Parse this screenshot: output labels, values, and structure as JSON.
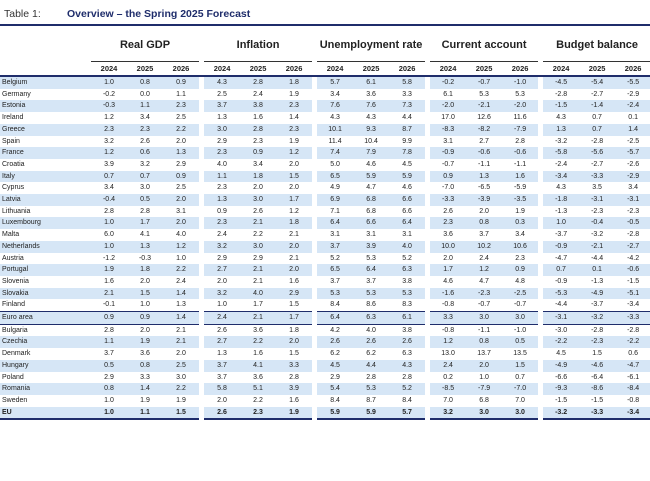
{
  "table_label": "Table 1:",
  "title": "Overview – the Spring 2025 Forecast",
  "groups": [
    "Real GDP",
    "Inflation",
    "Unemployment rate",
    "Current account",
    "Budget balance"
  ],
  "years": [
    "2024",
    "2025",
    "2026"
  ],
  "rows": [
    {
      "country": "Belgium",
      "v": [
        "1.0",
        "0.8",
        "0.9",
        "4.3",
        "2.8",
        "1.8",
        "5.7",
        "6.1",
        "5.8",
        "-0.2",
        "-0.7",
        "-1.0",
        "-4.5",
        "-5.4",
        "-5.5"
      ]
    },
    {
      "country": "Germany",
      "v": [
        "-0.2",
        "0.0",
        "1.1",
        "2.5",
        "2.4",
        "1.9",
        "3.4",
        "3.6",
        "3.3",
        "6.1",
        "5.3",
        "5.3",
        "-2.8",
        "-2.7",
        "-2.9"
      ]
    },
    {
      "country": "Estonia",
      "v": [
        "-0.3",
        "1.1",
        "2.3",
        "3.7",
        "3.8",
        "2.3",
        "7.6",
        "7.6",
        "7.3",
        "-2.0",
        "-2.1",
        "-2.0",
        "-1.5",
        "-1.4",
        "-2.4"
      ]
    },
    {
      "country": "Ireland",
      "v": [
        "1.2",
        "3.4",
        "2.5",
        "1.3",
        "1.6",
        "1.4",
        "4.3",
        "4.3",
        "4.4",
        "17.0",
        "12.6",
        "11.6",
        "4.3",
        "0.7",
        "0.1"
      ]
    },
    {
      "country": "Greece",
      "v": [
        "2.3",
        "2.3",
        "2.2",
        "3.0",
        "2.8",
        "2.3",
        "10.1",
        "9.3",
        "8.7",
        "-8.3",
        "-8.2",
        "-7.9",
        "1.3",
        "0.7",
        "1.4"
      ]
    },
    {
      "country": "Spain",
      "v": [
        "3.2",
        "2.6",
        "2.0",
        "2.9",
        "2.3",
        "1.9",
        "11.4",
        "10.4",
        "9.9",
        "3.1",
        "2.7",
        "2.8",
        "-3.2",
        "-2.8",
        "-2.5"
      ]
    },
    {
      "country": "France",
      "v": [
        "1.2",
        "0.6",
        "1.3",
        "2.3",
        "0.9",
        "1.2",
        "7.4",
        "7.9",
        "7.8",
        "-0.9",
        "-0.6",
        "-0.6",
        "-5.8",
        "-5.6",
        "-5.7"
      ]
    },
    {
      "country": "Croatia",
      "v": [
        "3.9",
        "3.2",
        "2.9",
        "4.0",
        "3.4",
        "2.0",
        "5.0",
        "4.6",
        "4.5",
        "-0.7",
        "-1.1",
        "-1.1",
        "-2.4",
        "-2.7",
        "-2.6"
      ]
    },
    {
      "country": "Italy",
      "v": [
        "0.7",
        "0.7",
        "0.9",
        "1.1",
        "1.8",
        "1.5",
        "6.5",
        "5.9",
        "5.9",
        "0.9",
        "1.3",
        "1.6",
        "-3.4",
        "-3.3",
        "-2.9"
      ]
    },
    {
      "country": "Cyprus",
      "v": [
        "3.4",
        "3.0",
        "2.5",
        "2.3",
        "2.0",
        "2.0",
        "4.9",
        "4.7",
        "4.6",
        "-7.0",
        "-6.5",
        "-5.9",
        "4.3",
        "3.5",
        "3.4"
      ]
    },
    {
      "country": "Latvia",
      "v": [
        "-0.4",
        "0.5",
        "2.0",
        "1.3",
        "3.0",
        "1.7",
        "6.9",
        "6.8",
        "6.6",
        "-3.3",
        "-3.9",
        "-3.5",
        "-1.8",
        "-3.1",
        "-3.1"
      ]
    },
    {
      "country": "Lithuania",
      "v": [
        "2.8",
        "2.8",
        "3.1",
        "0.9",
        "2.6",
        "1.2",
        "7.1",
        "6.8",
        "6.6",
        "2.6",
        "2.0",
        "1.9",
        "-1.3",
        "-2.3",
        "-2.3"
      ]
    },
    {
      "country": "Luxembourg",
      "v": [
        "1.0",
        "1.7",
        "2.0",
        "2.3",
        "2.1",
        "1.8",
        "6.4",
        "6.6",
        "6.4",
        "2.3",
        "0.8",
        "0.3",
        "1.0",
        "-0.4",
        "-0.5"
      ]
    },
    {
      "country": "Malta",
      "v": [
        "6.0",
        "4.1",
        "4.0",
        "2.4",
        "2.2",
        "2.1",
        "3.1",
        "3.1",
        "3.1",
        "3.6",
        "3.7",
        "3.4",
        "-3.7",
        "-3.2",
        "-2.8"
      ]
    },
    {
      "country": "Netherlands",
      "v": [
        "1.0",
        "1.3",
        "1.2",
        "3.2",
        "3.0",
        "2.0",
        "3.7",
        "3.9",
        "4.0",
        "10.0",
        "10.2",
        "10.6",
        "-0.9",
        "-2.1",
        "-2.7"
      ]
    },
    {
      "country": "Austria",
      "v": [
        "-1.2",
        "-0.3",
        "1.0",
        "2.9",
        "2.9",
        "2.1",
        "5.2",
        "5.3",
        "5.2",
        "2.0",
        "2.4",
        "2.3",
        "-4.7",
        "-4.4",
        "-4.2"
      ]
    },
    {
      "country": "Portugal",
      "v": [
        "1.9",
        "1.8",
        "2.2",
        "2.7",
        "2.1",
        "2.0",
        "6.5",
        "6.4",
        "6.3",
        "1.7",
        "1.2",
        "0.9",
        "0.7",
        "0.1",
        "-0.6"
      ]
    },
    {
      "country": "Slovenia",
      "v": [
        "1.6",
        "2.0",
        "2.4",
        "2.0",
        "2.1",
        "1.6",
        "3.7",
        "3.7",
        "3.8",
        "4.6",
        "4.7",
        "4.8",
        "-0.9",
        "-1.3",
        "-1.5"
      ]
    },
    {
      "country": "Slovakia",
      "v": [
        "2.1",
        "1.5",
        "1.4",
        "3.2",
        "4.0",
        "2.9",
        "5.3",
        "5.3",
        "5.3",
        "-1.6",
        "-2.3",
        "-2.5",
        "-5.3",
        "-4.9",
        "-5.1"
      ]
    },
    {
      "country": "Finland",
      "v": [
        "-0.1",
        "1.0",
        "1.3",
        "1.0",
        "1.7",
        "1.5",
        "8.4",
        "8.6",
        "8.3",
        "-0.8",
        "-0.7",
        "-0.7",
        "-4.4",
        "-3.7",
        "-3.4"
      ]
    },
    {
      "country": "Euro area",
      "agg": true,
      "v": [
        "0.9",
        "0.9",
        "1.4",
        "2.4",
        "2.1",
        "1.7",
        "6.4",
        "6.3",
        "6.1",
        "3.3",
        "3.0",
        "3.0",
        "-3.1",
        "-3.2",
        "-3.3"
      ]
    },
    {
      "country": "Bulgaria",
      "v": [
        "2.8",
        "2.0",
        "2.1",
        "2.6",
        "3.6",
        "1.8",
        "4.2",
        "4.0",
        "3.8",
        "-0.8",
        "-1.1",
        "-1.0",
        "-3.0",
        "-2.8",
        "-2.8"
      ]
    },
    {
      "country": "Czechia",
      "v": [
        "1.1",
        "1.9",
        "2.1",
        "2.7",
        "2.2",
        "2.0",
        "2.6",
        "2.6",
        "2.6",
        "1.2",
        "0.8",
        "0.5",
        "-2.2",
        "-2.3",
        "-2.2"
      ]
    },
    {
      "country": "Denmark",
      "v": [
        "3.7",
        "3.6",
        "2.0",
        "1.3",
        "1.6",
        "1.5",
        "6.2",
        "6.2",
        "6.3",
        "13.0",
        "13.7",
        "13.5",
        "4.5",
        "1.5",
        "0.6"
      ]
    },
    {
      "country": "Hungary",
      "v": [
        "0.5",
        "0.8",
        "2.5",
        "3.7",
        "4.1",
        "3.3",
        "4.5",
        "4.4",
        "4.3",
        "2.4",
        "2.0",
        "1.5",
        "-4.9",
        "-4.6",
        "-4.7"
      ]
    },
    {
      "country": "Poland",
      "v": [
        "2.9",
        "3.3",
        "3.0",
        "3.7",
        "3.6",
        "2.8",
        "2.9",
        "2.8",
        "2.8",
        "0.2",
        "1.0",
        "0.7",
        "-6.6",
        "-6.4",
        "-6.1"
      ]
    },
    {
      "country": "Romania",
      "v": [
        "0.8",
        "1.4",
        "2.2",
        "5.8",
        "5.1",
        "3.9",
        "5.4",
        "5.3",
        "5.2",
        "-8.5",
        "-7.9",
        "-7.0",
        "-9.3",
        "-8.6",
        "-8.4"
      ]
    },
    {
      "country": "Sweden",
      "v": [
        "1.0",
        "1.9",
        "1.9",
        "2.0",
        "2.2",
        "1.6",
        "8.4",
        "8.7",
        "8.4",
        "7.0",
        "6.8",
        "7.0",
        "-1.5",
        "-1.5",
        "-0.8"
      ]
    },
    {
      "country": "EU",
      "total": true,
      "v": [
        "1.0",
        "1.1",
        "1.5",
        "2.6",
        "2.3",
        "1.9",
        "5.9",
        "5.9",
        "5.7",
        "3.2",
        "3.0",
        "3.0",
        "-3.2",
        "-3.3",
        "-3.4"
      ]
    }
  ]
}
